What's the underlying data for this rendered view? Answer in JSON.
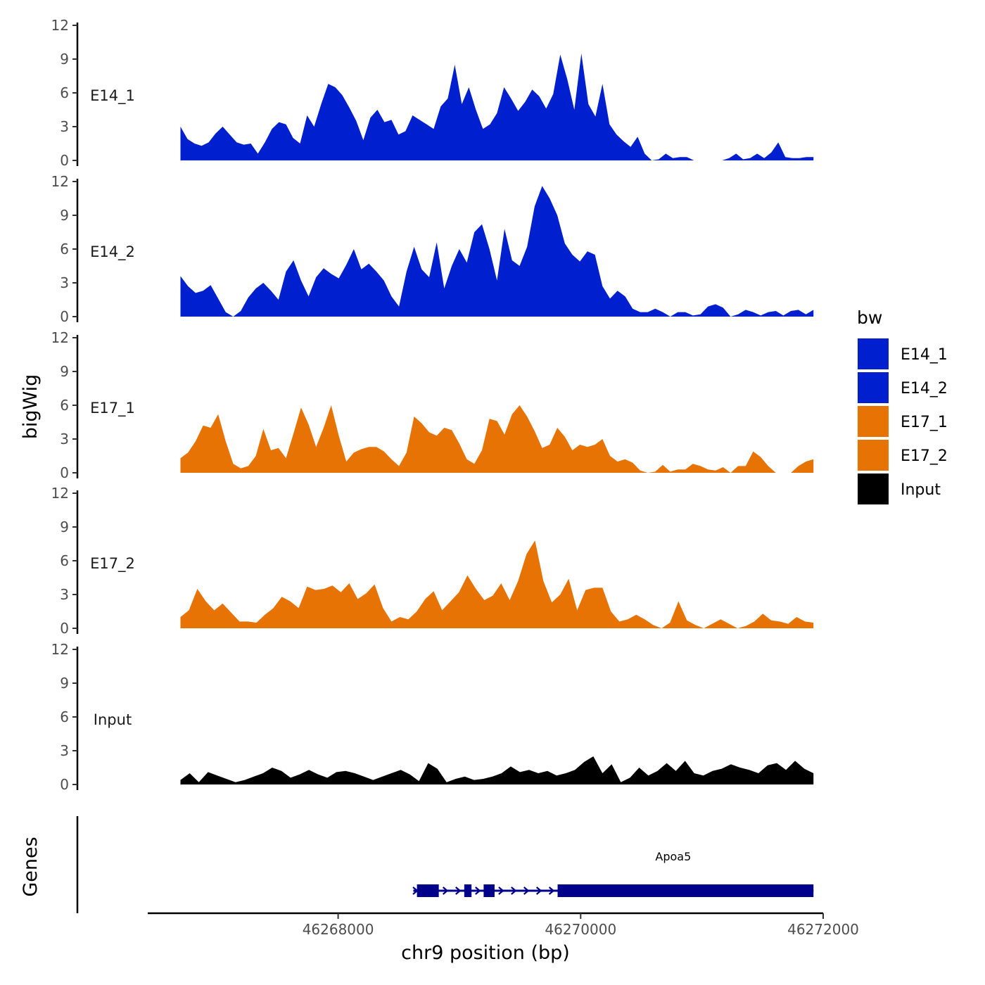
{
  "chart_data": {
    "type": "area",
    "chromosome": "chr9",
    "ylabel": "bigWig",
    "genes_label": "Genes",
    "xlabel": "chr9 position (bp)",
    "xlim": [
      46266430,
      46272000
    ],
    "x_range": [
      46266700,
      46271920
    ],
    "x_ticks": [
      46268000,
      46270000,
      46272000
    ],
    "x_tick_labels": [
      "46268000",
      "46270000",
      "46272000"
    ],
    "ylim": [
      0,
      12
    ],
    "y_ticks": [
      0,
      3,
      6,
      9,
      12
    ],
    "y_tick_labels": [
      "0",
      "3",
      "6",
      "9",
      "12"
    ],
    "legend": {
      "title": "bw",
      "position": "right",
      "entries": [
        {
          "label": "E14_1",
          "color": "#0020D0"
        },
        {
          "label": "E14_2",
          "color": "#0020D0"
        },
        {
          "label": "E17_1",
          "color": "#E87305"
        },
        {
          "label": "E17_2",
          "color": "#E87305"
        },
        {
          "label": "Input",
          "color": "#000000"
        }
      ]
    },
    "tracks": [
      {
        "name": "E14_1",
        "color": "#0020D0",
        "values": [
          3.0,
          1.9,
          1.5,
          1.3,
          1.6,
          2.4,
          3.0,
          2.3,
          1.6,
          1.4,
          1.5,
          0.6,
          1.6,
          2.8,
          3.4,
          3.2,
          2.0,
          1.5,
          4.0,
          3.0,
          5.0,
          6.8,
          6.5,
          5.8,
          4.7,
          3.5,
          1.8,
          3.8,
          4.5,
          3.4,
          3.6,
          2.3,
          2.6,
          4.0,
          3.6,
          3.2,
          2.8,
          4.8,
          5.5,
          8.5,
          5.0,
          6.5,
          4.5,
          2.8,
          3.2,
          4.2,
          6.5,
          5.5,
          4.4,
          5.2,
          6.3,
          5.7,
          4.6,
          5.9,
          9.4,
          7.2,
          4.5,
          9.5,
          5.0,
          3.9,
          6.8,
          3.2,
          2.3,
          1.7,
          1.2,
          2.1,
          0.6,
          0.0,
          0.1,
          0.6,
          0.2,
          0.3,
          0.3,
          0.0,
          0.0,
          0.0,
          0.0,
          0.0,
          0.2,
          0.6,
          0.1,
          0.2,
          0.6,
          0.2,
          0.7,
          1.6,
          0.3,
          0.2,
          0.2,
          0.3,
          0.3
        ]
      },
      {
        "name": "E14_2",
        "color": "#0020D0",
        "values": [
          3.6,
          2.7,
          2.1,
          2.3,
          2.8,
          1.6,
          0.4,
          0.0,
          0.5,
          1.7,
          2.5,
          3.0,
          2.3,
          1.5,
          4.0,
          5.0,
          3.2,
          1.8,
          3.5,
          4.3,
          3.8,
          3.4,
          4.6,
          6.0,
          4.2,
          4.7,
          4.0,
          3.2,
          1.8,
          0.9,
          4.0,
          6.2,
          4.2,
          3.5,
          6.6,
          2.5,
          4.5,
          6.0,
          4.8,
          7.5,
          8.2,
          6.0,
          3.2,
          7.8,
          5.0,
          4.5,
          6.2,
          9.8,
          11.6,
          10.5,
          9.0,
          6.5,
          5.5,
          4.9,
          5.8,
          5.5,
          2.7,
          1.6,
          2.3,
          1.8,
          0.7,
          0.4,
          0.4,
          0.7,
          0.4,
          0.0,
          0.4,
          0.4,
          0.1,
          0.2,
          0.9,
          1.1,
          0.8,
          0.0,
          0.2,
          0.6,
          0.4,
          0.1,
          0.4,
          0.5,
          0.1,
          0.5,
          0.6,
          0.2,
          0.6
        ]
      },
      {
        "name": "E17_1",
        "color": "#E87305",
        "values": [
          1.3,
          1.8,
          2.8,
          4.2,
          4.0,
          5.2,
          2.8,
          0.8,
          0.4,
          0.6,
          1.5,
          3.9,
          2.0,
          2.2,
          1.3,
          3.5,
          5.8,
          4.3,
          2.3,
          4.0,
          6.0,
          3.3,
          1.0,
          1.8,
          2.1,
          2.3,
          2.3,
          1.9,
          1.2,
          0.6,
          1.8,
          5.0,
          4.4,
          3.6,
          3.3,
          4.0,
          3.8,
          2.6,
          1.2,
          0.8,
          2.0,
          4.8,
          4.6,
          3.4,
          5.2,
          6.0,
          5.0,
          3.7,
          2.2,
          2.5,
          4.0,
          3.2,
          2.0,
          2.5,
          2.3,
          2.5,
          3.0,
          1.5,
          1.0,
          1.2,
          0.9,
          0.2,
          0.0,
          0.1,
          0.7,
          0.1,
          0.3,
          0.3,
          0.8,
          0.6,
          0.3,
          0.2,
          0.5,
          0.0,
          0.6,
          0.6,
          1.9,
          1.4,
          0.6,
          0.0,
          0.0,
          0.0,
          0.6,
          1.0,
          1.2
        ]
      },
      {
        "name": "E17_2",
        "color": "#E87305",
        "values": [
          1.0,
          1.6,
          3.5,
          2.4,
          1.6,
          2.2,
          1.4,
          0.6,
          0.6,
          0.5,
          1.2,
          1.8,
          2.8,
          2.4,
          1.8,
          3.7,
          3.4,
          3.5,
          3.8,
          3.2,
          4.0,
          2.6,
          3.1,
          3.9,
          1.8,
          0.6,
          1.0,
          0.8,
          1.5,
          2.6,
          3.3,
          1.6,
          2.4,
          3.2,
          4.7,
          3.5,
          2.5,
          2.9,
          4.0,
          2.5,
          4.2,
          6.6,
          7.8,
          4.2,
          2.3,
          3.0,
          4.4,
          1.6,
          3.4,
          3.6,
          3.6,
          1.5,
          0.6,
          0.8,
          1.2,
          0.8,
          0.3,
          0.0,
          0.5,
          2.4,
          0.7,
          0.3,
          0.0,
          0.4,
          0.8,
          0.4,
          0.0,
          0.2,
          0.6,
          1.3,
          0.7,
          0.6,
          0.4,
          1.0,
          0.6,
          0.5
        ]
      },
      {
        "name": "Input",
        "color": "#000000",
        "values": [
          0.4,
          1.0,
          0.2,
          1.1,
          0.8,
          0.5,
          0.2,
          0.4,
          0.7,
          1.0,
          1.5,
          1.2,
          0.6,
          0.9,
          1.3,
          0.9,
          0.6,
          1.1,
          1.2,
          1.0,
          0.7,
          0.4,
          0.7,
          1.0,
          1.3,
          0.9,
          0.3,
          1.9,
          1.4,
          0.2,
          0.5,
          0.7,
          0.4,
          0.5,
          0.7,
          1.0,
          1.6,
          1.1,
          1.3,
          1.0,
          1.2,
          0.8,
          1.0,
          1.3,
          2.0,
          2.5,
          1.0,
          1.8,
          0.2,
          0.6,
          1.5,
          0.8,
          1.2,
          1.9,
          1.2,
          2.1,
          1.0,
          0.8,
          1.2,
          1.4,
          1.8,
          1.5,
          1.3,
          1.0,
          1.7,
          1.9,
          1.3,
          2.1,
          1.4,
          1.0
        ]
      }
    ],
    "genes": [
      {
        "name": "Apoa5",
        "color": "#00008B",
        "start": 46268620,
        "end": 46271920,
        "direction": "+",
        "exons": [
          [
            46268650,
            46268830
          ],
          [
            46269040,
            46269100
          ],
          [
            46269200,
            46269290
          ],
          [
            46269810,
            46271920
          ]
        ]
      }
    ]
  }
}
